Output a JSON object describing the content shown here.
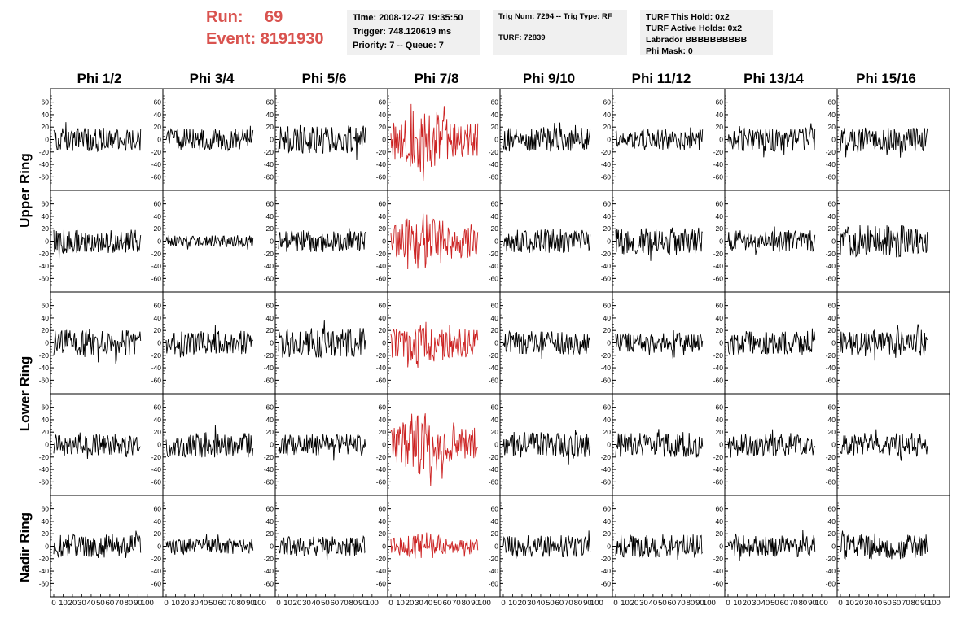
{
  "header": {
    "run_label": "Run:",
    "run_value": "69",
    "event_label": "Event:",
    "event_value": "8191930",
    "highlight_color": "#d9534f"
  },
  "info_time": {
    "line1": "Time: 2008-12-27 19:35:50",
    "line2": "Trigger: 748.120619 ms",
    "line3": "Priority: 7 -- Queue: 7"
  },
  "info_trig": {
    "line1": "Trig Num: 7294 -- Trig Type: RF",
    "line2": "TURF: 72839"
  },
  "info_turf": {
    "line1": "TURF This Hold: 0x2",
    "line2": "TURF Active Holds: 0x2",
    "line3": "Labrador BBBBBBBBBB",
    "line4": "Phi Mask: 0"
  },
  "chart_data": {
    "type": "line",
    "columns": [
      "Phi 1/2",
      "Phi 3/4",
      "Phi 5/6",
      "Phi 7/8",
      "Phi 9/10",
      "Phi 11/12",
      "Phi 13/14",
      "Phi 15/16"
    ],
    "rows": [
      "Upper Ring",
      "Upper Ring",
      "Lower Ring",
      "Lower Ring",
      "Nadir Ring"
    ],
    "ring_labels": [
      "Upper Ring",
      "Lower Ring",
      "Nadir Ring"
    ],
    "triggered_column": "Phi 7/8",
    "trace_color": "#000000",
    "triggered_color": "#cc2222",
    "xlim": [
      0,
      100
    ],
    "ylim": [
      -70,
      70
    ],
    "x_ticks": [
      0,
      10,
      20,
      30,
      40,
      50,
      60,
      70,
      80,
      90,
      100
    ],
    "x_tick_labels": [
      "0",
      "10",
      "20",
      "30",
      "40",
      "50",
      "60",
      "70",
      "80",
      "90",
      "100"
    ],
    "y_ticks": [
      -60,
      -40,
      -20,
      0,
      20,
      40,
      60
    ],
    "y_tick_labels": [
      "-60",
      "-40",
      "-20",
      "0",
      "20",
      "40",
      "60"
    ],
    "trace_amplitude": [
      [
        12,
        11,
        14,
        26,
        12,
        11,
        12,
        12
      ],
      [
        12,
        6,
        11,
        24,
        12,
        14,
        11,
        16
      ],
      [
        13,
        12,
        15,
        20,
        12,
        10,
        12,
        13
      ],
      [
        11,
        13,
        11,
        25,
        13,
        13,
        12,
        12
      ],
      [
        12,
        8,
        10,
        11,
        11,
        12,
        11,
        13
      ]
    ]
  }
}
